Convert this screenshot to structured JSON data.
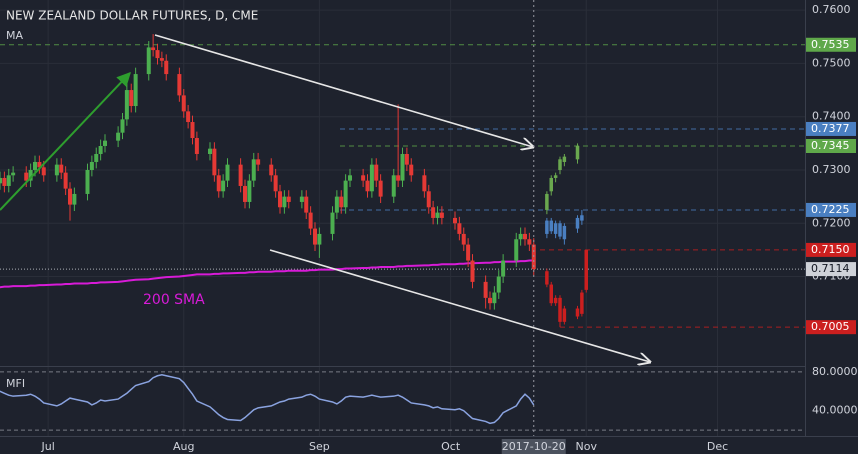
{
  "chart_data": [
    {
      "type": "candlestick",
      "title": "NEW ZEALAND DOLLAR FUTURES, D, CME",
      "indicator": "MA",
      "annotation": "200 SMA",
      "x": [
        "2017-06-19",
        "2017-06-20",
        "2017-06-21",
        "2017-06-22",
        "2017-06-23",
        "2017-06-26",
        "2017-06-27",
        "2017-06-28",
        "2017-06-29",
        "2017-06-30",
        "2017-07-03",
        "2017-07-04",
        "2017-07-05",
        "2017-07-06",
        "2017-07-07",
        "2017-07-10",
        "2017-07-11",
        "2017-07-12",
        "2017-07-13",
        "2017-07-14",
        "2017-07-17",
        "2017-07-18",
        "2017-07-19",
        "2017-07-20",
        "2017-07-21",
        "2017-07-24",
        "2017-07-25",
        "2017-07-26",
        "2017-07-27",
        "2017-07-28",
        "2017-07-31",
        "2017-08-01",
        "2017-08-02",
        "2017-08-03",
        "2017-08-04",
        "2017-08-07",
        "2017-08-08",
        "2017-08-09",
        "2017-08-10",
        "2017-08-11",
        "2017-08-14",
        "2017-08-15",
        "2017-08-16",
        "2017-08-17",
        "2017-08-18",
        "2017-08-21",
        "2017-08-22",
        "2017-08-23",
        "2017-08-24",
        "2017-08-25",
        "2017-08-28",
        "2017-08-29",
        "2017-08-30",
        "2017-08-31",
        "2017-09-01",
        "2017-09-04",
        "2017-09-05",
        "2017-09-06",
        "2017-09-07",
        "2017-09-08",
        "2017-09-11",
        "2017-09-12",
        "2017-09-13",
        "2017-09-14",
        "2017-09-15",
        "2017-09-18",
        "2017-09-19",
        "2017-09-20",
        "2017-09-21",
        "2017-09-22",
        "2017-09-25",
        "2017-09-26",
        "2017-09-27",
        "2017-09-28",
        "2017-09-29",
        "2017-10-02",
        "2017-10-03",
        "2017-10-04",
        "2017-10-05",
        "2017-10-06",
        "2017-10-09",
        "2017-10-10",
        "2017-10-11",
        "2017-10-12",
        "2017-10-13",
        "2017-10-16",
        "2017-10-17",
        "2017-10-18",
        "2017-10-19",
        "2017-10-20"
      ],
      "open": [
        0.728,
        0.7275,
        0.7285,
        0.727,
        0.729,
        0.7295,
        0.728,
        0.73,
        0.7315,
        0.7305,
        0.729,
        0.731,
        0.7295,
        0.7265,
        0.7235,
        0.7255,
        0.73,
        0.7315,
        0.733,
        0.7345,
        0.7355,
        0.737,
        0.7395,
        0.745,
        0.742,
        0.748,
        0.753,
        0.7525,
        0.751,
        0.7505,
        0.748,
        0.744,
        0.741,
        0.739,
        0.736,
        0.733,
        0.734,
        0.729,
        0.726,
        0.728,
        0.731,
        0.727,
        0.724,
        0.728,
        0.732,
        0.731,
        0.729,
        0.726,
        0.723,
        0.725,
        0.724,
        0.725,
        0.722,
        0.719,
        0.716,
        0.718,
        0.722,
        0.725,
        0.723,
        0.728,
        0.729,
        0.728,
        0.726,
        0.731,
        0.728,
        0.725,
        0.729,
        0.728,
        0.733,
        0.731,
        0.729,
        0.726,
        0.723,
        0.721,
        0.722,
        0.721,
        0.72,
        0.718,
        0.716,
        0.713,
        0.709,
        0.706,
        0.705,
        0.707,
        0.71,
        0.713,
        0.717,
        0.718,
        0.717,
        0.716
      ],
      "high": [
        0.7292,
        0.7297,
        0.7297,
        0.7302,
        0.7307,
        0.7307,
        0.7312,
        0.7327,
        0.7327,
        0.7317,
        0.7322,
        0.7322,
        0.7307,
        0.7277,
        0.7267,
        0.7312,
        0.7327,
        0.7342,
        0.7357,
        0.7367,
        0.7382,
        0.7407,
        0.7462,
        0.7462,
        0.7492,
        0.7542,
        0.7555,
        0.7537,
        0.7522,
        0.7517,
        0.7492,
        0.7452,
        0.7422,
        0.7402,
        0.7372,
        0.7352,
        0.7352,
        0.7302,
        0.7292,
        0.7322,
        0.7322,
        0.7282,
        0.7292,
        0.7332,
        0.7332,
        0.7322,
        0.7302,
        0.7272,
        0.7262,
        0.7262,
        0.7262,
        0.7262,
        0.7232,
        0.7202,
        0.7192,
        0.7232,
        0.7262,
        0.7262,
        0.7292,
        0.7302,
        0.7302,
        0.7292,
        0.7322,
        0.7322,
        0.7292,
        0.7302,
        0.7423,
        0.7342,
        0.7342,
        0.7322,
        0.7302,
        0.7272,
        0.7242,
        0.7232,
        0.7232,
        0.7222,
        0.7212,
        0.7192,
        0.7172,
        0.7142,
        0.7102,
        0.7072,
        0.7082,
        0.7112,
        0.7142,
        0.7182,
        0.7192,
        0.7192,
        0.7182,
        0.7172
      ],
      "low": [
        0.7263,
        0.7263,
        0.7258,
        0.7258,
        0.7278,
        0.7268,
        0.7268,
        0.7288,
        0.7293,
        0.7278,
        0.7278,
        0.7283,
        0.7253,
        0.7205,
        0.7223,
        0.7243,
        0.7288,
        0.7303,
        0.7318,
        0.7333,
        0.7343,
        0.7358,
        0.7383,
        0.7408,
        0.7408,
        0.7468,
        0.7513,
        0.7498,
        0.7493,
        0.7468,
        0.7428,
        0.7398,
        0.7378,
        0.7348,
        0.7318,
        0.7318,
        0.7278,
        0.7248,
        0.7248,
        0.7268,
        0.7258,
        0.7228,
        0.7228,
        0.7268,
        0.7298,
        0.7278,
        0.7248,
        0.7218,
        0.7218,
        0.7228,
        0.7228,
        0.7208,
        0.7178,
        0.7148,
        0.7135,
        0.7168,
        0.7208,
        0.7218,
        0.7218,
        0.7268,
        0.7268,
        0.7248,
        0.7248,
        0.7268,
        0.7238,
        0.7238,
        0.7268,
        0.7268,
        0.7298,
        0.7278,
        0.7248,
        0.7218,
        0.7198,
        0.7198,
        0.7198,
        0.7188,
        0.7168,
        0.7148,
        0.7118,
        0.7078,
        0.704,
        0.7038,
        0.7038,
        0.7058,
        0.7088,
        0.7118,
        0.7158,
        0.7158,
        0.7148,
        0.7102
      ],
      "close": [
        0.7275,
        0.7285,
        0.727,
        0.729,
        0.7295,
        0.728,
        0.73,
        0.7315,
        0.7305,
        0.729,
        0.731,
        0.7295,
        0.7265,
        0.7235,
        0.7255,
        0.73,
        0.7315,
        0.733,
        0.7345,
        0.7355,
        0.737,
        0.7395,
        0.745,
        0.742,
        0.748,
        0.753,
        0.7525,
        0.751,
        0.7505,
        0.748,
        0.744,
        0.741,
        0.739,
        0.736,
        0.733,
        0.734,
        0.729,
        0.726,
        0.728,
        0.731,
        0.727,
        0.724,
        0.728,
        0.732,
        0.731,
        0.729,
        0.726,
        0.723,
        0.725,
        0.724,
        0.725,
        0.722,
        0.719,
        0.716,
        0.718,
        0.722,
        0.725,
        0.723,
        0.728,
        0.729,
        0.728,
        0.726,
        0.731,
        0.728,
        0.725,
        0.729,
        0.728,
        0.733,
        0.731,
        0.729,
        0.726,
        0.723,
        0.721,
        0.722,
        0.721,
        0.72,
        0.718,
        0.716,
        0.713,
        0.709,
        0.706,
        0.705,
        0.707,
        0.71,
        0.713,
        0.717,
        0.718,
        0.717,
        0.716,
        0.7114
      ],
      "up_color": "#4caf50",
      "down_color": "#e53935",
      "sma": {
        "color": "#d81bd8",
        "values": [
          0.708,
          0.708,
          0.7081,
          0.7081,
          0.7082,
          0.7082,
          0.7083,
          0.7083,
          0.7084,
          0.7084,
          0.7085,
          0.7085,
          0.7086,
          0.7086,
          0.7087,
          0.7087,
          0.7088,
          0.7088,
          0.7089,
          0.7089,
          0.709,
          0.7091,
          0.7092,
          0.7093,
          0.7094,
          0.7095,
          0.7096,
          0.7097,
          0.7098,
          0.7099,
          0.71,
          0.7101,
          0.7102,
          0.7103,
          0.7104,
          0.7104,
          0.7105,
          0.7105,
          0.7106,
          0.7106,
          0.7107,
          0.7107,
          0.7108,
          0.7108,
          0.7109,
          0.7109,
          0.711,
          0.711,
          0.711,
          0.7111,
          0.7111,
          0.7111,
          0.7112,
          0.7112,
          0.7113,
          0.7113,
          0.7114,
          0.7114,
          0.7115,
          0.7115,
          0.7116,
          0.7116,
          0.7117,
          0.7117,
          0.7118,
          0.7118,
          0.7119,
          0.7119,
          0.712,
          0.712,
          0.7121,
          0.7121,
          0.7122,
          0.7122,
          0.7123,
          0.7123,
          0.7124,
          0.7124,
          0.7125,
          0.7125,
          0.7126,
          0.7126,
          0.7127,
          0.7127,
          0.7128,
          0.7128,
          0.7129,
          0.7129,
          0.713,
          0.713
        ]
      },
      "projections": [
        {
          "color": "#6aa84f",
          "x": [
            "2017-10-23",
            "2017-10-24",
            "2017-10-25",
            "2017-10-26",
            "2017-10-27",
            "2017-10-30"
          ],
          "open": [
            0.7225,
            0.726,
            0.7285,
            0.73,
            0.7315,
            0.732
          ],
          "high": [
            0.726,
            0.729,
            0.7295,
            0.7325,
            0.733,
            0.735
          ],
          "low": [
            0.7217,
            0.7252,
            0.7277,
            0.7292,
            0.7307,
            0.7312
          ],
          "close": [
            0.7255,
            0.7285,
            0.729,
            0.732,
            0.7325,
            0.7345
          ]
        },
        {
          "color": "#4a7fc1",
          "x": [
            "2017-10-23",
            "2017-10-24",
            "2017-10-25",
            "2017-10-26",
            "2017-10-27",
            "2017-10-30",
            "2017-10-31"
          ],
          "open": [
            0.718,
            0.7205,
            0.718,
            0.72,
            0.717,
            0.719,
            0.7205
          ],
          "high": [
            0.721,
            0.721,
            0.7205,
            0.7205,
            0.72,
            0.7215,
            0.7225
          ],
          "low": [
            0.7172,
            0.718,
            0.7172,
            0.717,
            0.716,
            0.7182,
            0.7197
          ],
          "close": [
            0.7205,
            0.7185,
            0.72,
            0.7175,
            0.7195,
            0.721,
            0.7215
          ]
        },
        {
          "color": "#cc1f1f",
          "x": [
            "2017-10-23",
            "2017-10-24",
            "2017-10-25",
            "2017-10-26",
            "2017-10-27",
            "2017-10-30",
            "2017-10-31",
            "2017-11-01"
          ],
          "open": [
            0.711,
            0.7085,
            0.705,
            0.706,
            0.7015,
            0.704,
            0.703,
            0.7075
          ],
          "high": [
            0.7115,
            0.709,
            0.7065,
            0.7065,
            0.7045,
            0.7045,
            0.7075,
            0.715
          ],
          "low": [
            0.708,
            0.7045,
            0.7045,
            0.7005,
            0.701,
            0.702,
            0.7025,
            0.707
          ],
          "close": [
            0.7085,
            0.705,
            0.706,
            0.7015,
            0.704,
            0.7025,
            0.707,
            0.715
          ]
        }
      ],
      "levels": {
        "values": [
          0.7535,
          0.7377,
          0.7345,
          0.7225,
          0.715,
          0.7114,
          0.7005
        ],
        "value_labels": [
          "0.7535",
          "0.7377",
          "0.7345",
          "0.7225",
          "0.7150",
          "0.7114",
          "0.7005"
        ],
        "colors": [
          "#5fa84a",
          "#4a7fc1",
          "#5fa84a",
          "#4a7fc1",
          "#cc1f1f",
          "#cfd2d8",
          "#cc1f1f"
        ]
      },
      "ylim": [
        0.6934,
        0.7619
      ],
      "yticks": [
        {
          "value": 0.76,
          "label": "0.7600"
        },
        {
          "value": 0.75,
          "label": "0.7500"
        },
        {
          "value": 0.74,
          "label": "0.7400"
        },
        {
          "value": 0.73,
          "label": "0.7300"
        },
        {
          "value": 0.72,
          "label": "0.7200"
        },
        {
          "value": 0.71,
          "label": "0.7100"
        }
      ],
      "xlim": [
        "2017-06-20",
        "2017-12-21"
      ],
      "xticks": [
        {
          "value": "2017-07-01",
          "label": "Jul"
        },
        {
          "value": "2017-08-01",
          "label": "Aug"
        },
        {
          "value": "2017-09-01",
          "label": "Sep"
        },
        {
          "value": "2017-10-01",
          "label": "Oct"
        },
        {
          "value": "2017-11-01",
          "label": "Nov"
        },
        {
          "value": "2017-12-01",
          "label": "Dec"
        }
      ]
    },
    {
      "type": "line",
      "title": "MFI",
      "color": "#8aa3e0",
      "values": [
        61,
        60,
        58,
        56,
        55,
        56,
        57,
        55,
        52,
        48,
        45,
        47,
        50,
        53,
        52,
        49,
        46,
        48,
        51,
        50,
        52,
        55,
        58,
        62,
        66,
        70,
        74,
        76,
        77,
        76,
        73,
        69,
        63,
        57,
        50,
        44,
        40,
        36,
        33,
        31,
        30,
        33,
        37,
        41,
        43,
        45,
        47,
        49,
        50,
        52,
        54,
        56,
        57,
        55,
        52,
        49,
        47,
        50,
        54,
        55,
        54,
        55,
        56,
        55,
        54,
        55,
        56,
        54,
        51,
        48,
        46,
        45,
        43,
        44,
        42,
        41,
        42,
        40,
        36,
        32,
        29,
        27,
        28,
        32,
        38,
        45,
        52,
        57,
        53,
        46
      ],
      "ylim": [
        14,
        84
      ],
      "yticks": [
        {
          "value": 80,
          "label": "80.0000"
        },
        {
          "value": 40,
          "label": "40.0000"
        }
      ],
      "bands": [
        80,
        20
      ]
    }
  ]
}
